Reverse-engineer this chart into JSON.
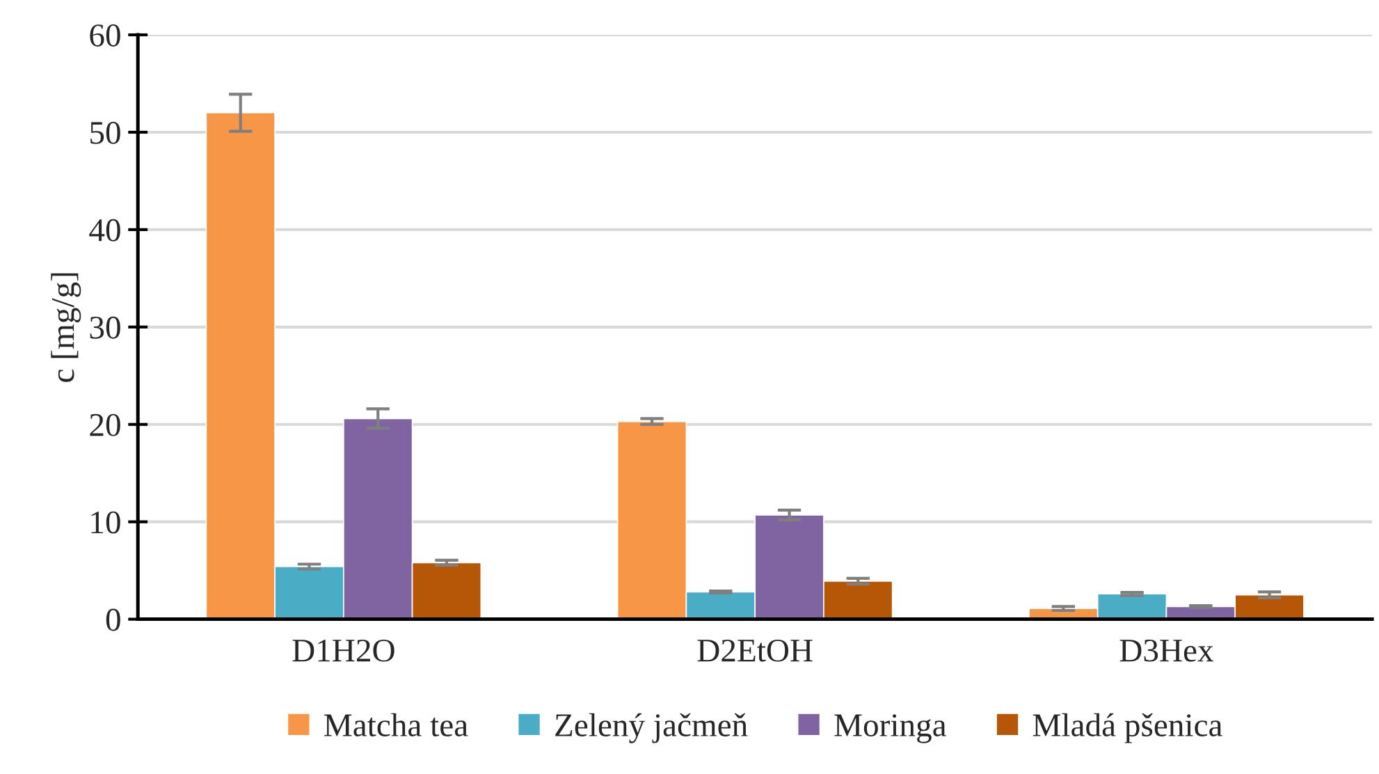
{
  "chart_data": {
    "type": "bar",
    "ylabel": "c [mg/g]",
    "categories": [
      "D1H2O",
      "D2EtOH",
      "D3Hex"
    ],
    "series": [
      {
        "name": "Matcha tea",
        "color": "#f79646",
        "values": [
          52.0,
          20.3,
          1.1
        ],
        "errors": [
          1.9,
          0.3,
          0.2
        ]
      },
      {
        "name": "Zelený jačmeň",
        "color": "#4bacc6",
        "values": [
          5.4,
          2.8,
          2.6
        ],
        "errors": [
          0.25,
          0.1,
          0.15
        ]
      },
      {
        "name": "Moringa",
        "color": "#8064a2",
        "values": [
          20.6,
          10.7,
          1.3
        ],
        "errors": [
          1.0,
          0.5,
          0.1
        ]
      },
      {
        "name": "Mladá pšenica",
        "color": "#b65708",
        "values": [
          5.8,
          3.9,
          2.5
        ],
        "errors": [
          0.25,
          0.3,
          0.3
        ]
      }
    ],
    "ylim": [
      0,
      60
    ],
    "yticks": [
      0,
      10,
      20,
      30,
      40,
      50,
      60
    ],
    "grid": "y",
    "legend": "bottom"
  }
}
